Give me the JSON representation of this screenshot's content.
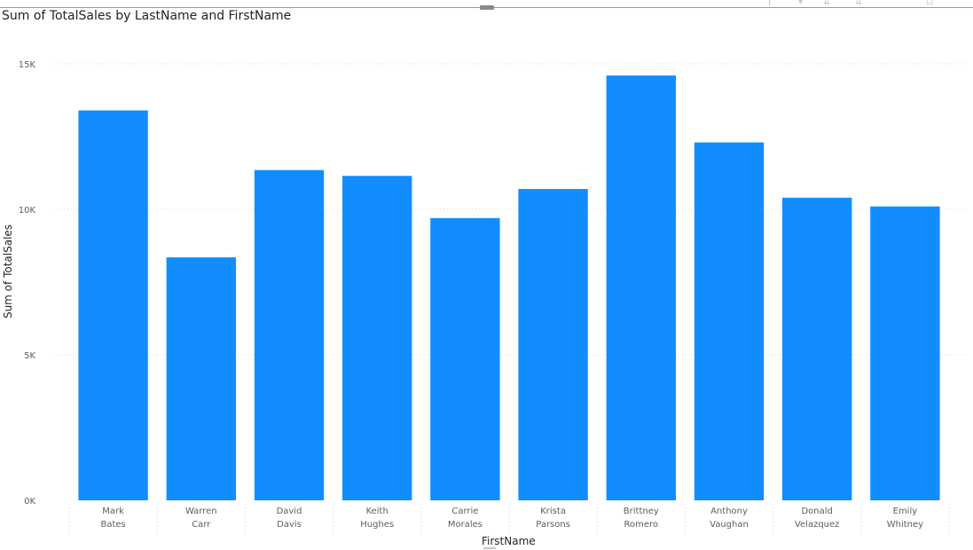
{
  "header": {
    "icons": [
      "pin-icon",
      "filter-icon",
      "expand-down-icon",
      "drill-icon",
      "focus-mode-icon"
    ]
  },
  "chart_data": {
    "type": "bar",
    "title": "Sum of TotalSales by LastName and FirstName",
    "xlabel": "FirstName",
    "ylabel": "Sum of TotalSales",
    "ylim": [
      0,
      15000
    ],
    "yticks": [
      "0K",
      "5K",
      "10K",
      "15K"
    ],
    "grid": true,
    "color": "#118DFF",
    "categories": [
      {
        "first": "Mark",
        "last": "Bates"
      },
      {
        "first": "Warren",
        "last": "Carr"
      },
      {
        "first": "David",
        "last": "Davis"
      },
      {
        "first": "Keith",
        "last": "Hughes"
      },
      {
        "first": "Carrie",
        "last": "Morales"
      },
      {
        "first": "Krista",
        "last": "Parsons"
      },
      {
        "first": "Brittney",
        "last": "Romero"
      },
      {
        "first": "Anthony",
        "last": "Vaughan"
      },
      {
        "first": "Donald",
        "last": "Velazquez"
      },
      {
        "first": "Emily",
        "last": "Whitney"
      }
    ],
    "values": [
      13400,
      8350,
      11350,
      11150,
      9700,
      10700,
      14600,
      12300,
      10400,
      10100
    ]
  }
}
